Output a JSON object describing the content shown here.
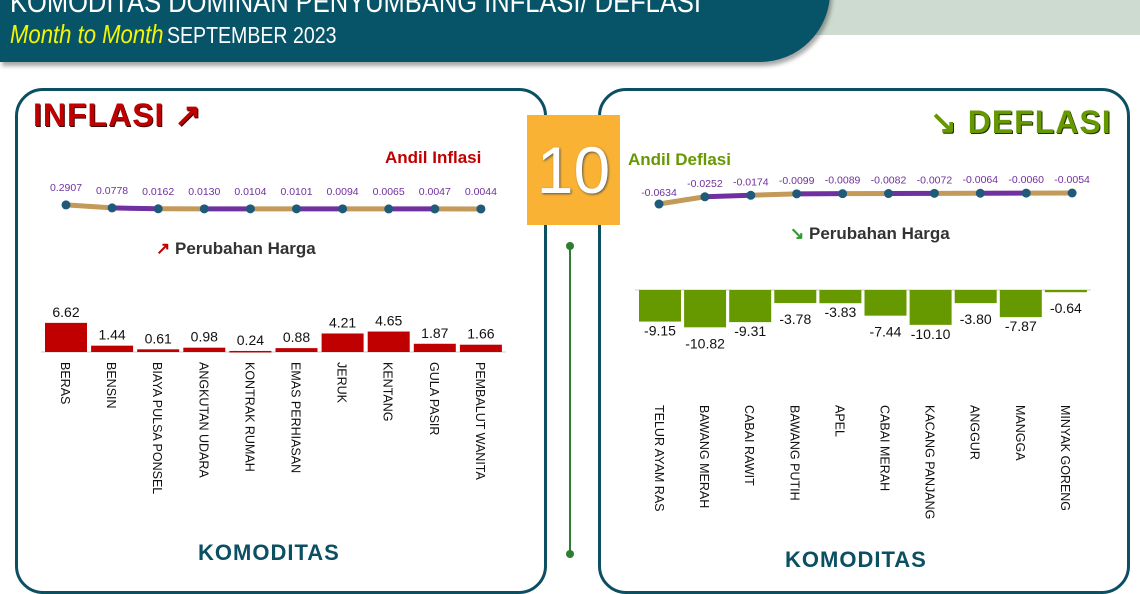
{
  "header": {
    "title": "KOMODITAS DOMINAN PENYUMBANG INFLASI/ DEFLASI",
    "period_label": "Month to Month",
    "period": "SEPTEMBER 2023"
  },
  "center": {
    "count": "10"
  },
  "colors": {
    "header": "#075468",
    "inflasi": "#c00000",
    "deflasi": "#669900",
    "line_tan": "#c49a5a",
    "line_purple": "#7030a0",
    "marker": "#1f5a7a",
    "badge": "#f9b233"
  },
  "chart_data": [
    {
      "type": "line",
      "title": "Andil Inflasi",
      "panel_title": "INFLASI",
      "categories": [
        "BERAS",
        "BENSIN",
        "BIAYA PULSA PONSEL",
        "ANGKUTAN UDARA",
        "KONTRAK RUMAH",
        "EMAS PERHIASAN",
        "JERUK",
        "KENTANG",
        "GULA PASIR",
        "PEMBALUT WANITA"
      ],
      "values": [
        0.2907,
        0.0778,
        0.0162,
        0.013,
        0.0104,
        0.0101,
        0.0094,
        0.0065,
        0.0047,
        0.0044
      ],
      "labels": [
        "0.2907",
        "0.0778",
        "0.0162",
        "0.0130",
        "0.0104",
        "0.0101",
        "0.0094",
        "0.0065",
        "0.0047",
        "0.0044"
      ]
    },
    {
      "type": "bar",
      "title": "Perubahan Harga",
      "xlabel": "KOMODITAS",
      "categories": [
        "BERAS",
        "BENSIN",
        "BIAYA PULSA PONSEL",
        "ANGKUTAN UDARA",
        "KONTRAK RUMAH",
        "EMAS PERHIASAN",
        "JERUK",
        "KENTANG",
        "GULA PASIR",
        "PEMBALUT WANITA"
      ],
      "values": [
        6.62,
        1.44,
        0.61,
        0.98,
        0.24,
        0.88,
        4.21,
        4.65,
        1.87,
        1.66
      ],
      "labels": [
        "6.62",
        "1.44",
        "0.61",
        "0.98",
        "0.24",
        "0.88",
        "4.21",
        "4.65",
        "1.87",
        "1.66"
      ]
    },
    {
      "type": "line",
      "title": "Andil Deflasi",
      "panel_title": "DEFLASI",
      "categories": [
        "TELUR AYAM RAS",
        "BAWANG MERAH",
        "CABAI RAWIT",
        "BAWANG PUTIH",
        "APEL",
        "CABAI MERAH",
        "KACANG PANJANG",
        "ANGGUR",
        "MANGGA",
        "MINYAK GORENG"
      ],
      "values": [
        -0.0634,
        -0.0252,
        -0.0174,
        -0.0099,
        -0.0089,
        -0.0082,
        -0.0072,
        -0.0064,
        -0.006,
        -0.0054
      ],
      "labels": [
        "-0.0634",
        "-0.0252",
        "-0.0174",
        "-0.0099",
        "-0.0089",
        "-0.0082",
        "-0.0072",
        "-0.0064",
        "-0.0060",
        "-0.0054"
      ]
    },
    {
      "type": "bar",
      "title": "Perubahan Harga",
      "xlabel": "KOMODITAS",
      "categories": [
        "TELUR AYAM RAS",
        "BAWANG MERAH",
        "CABAI RAWIT",
        "BAWANG PUTIH",
        "APEL",
        "CABAI MERAH",
        "KACANG PANJANG",
        "ANGGUR",
        "MANGGA",
        "MINYAK GORENG"
      ],
      "values": [
        -9.15,
        -10.82,
        -9.31,
        -3.78,
        -3.83,
        -7.44,
        -10.1,
        -3.8,
        -7.87,
        -0.64
      ],
      "labels": [
        "-9.15",
        "-10.82",
        "-9.31",
        "-3.78",
        "-3.83",
        "-7.44",
        "-10.10",
        "-3.80",
        "-7.87",
        "-0.64"
      ]
    }
  ]
}
